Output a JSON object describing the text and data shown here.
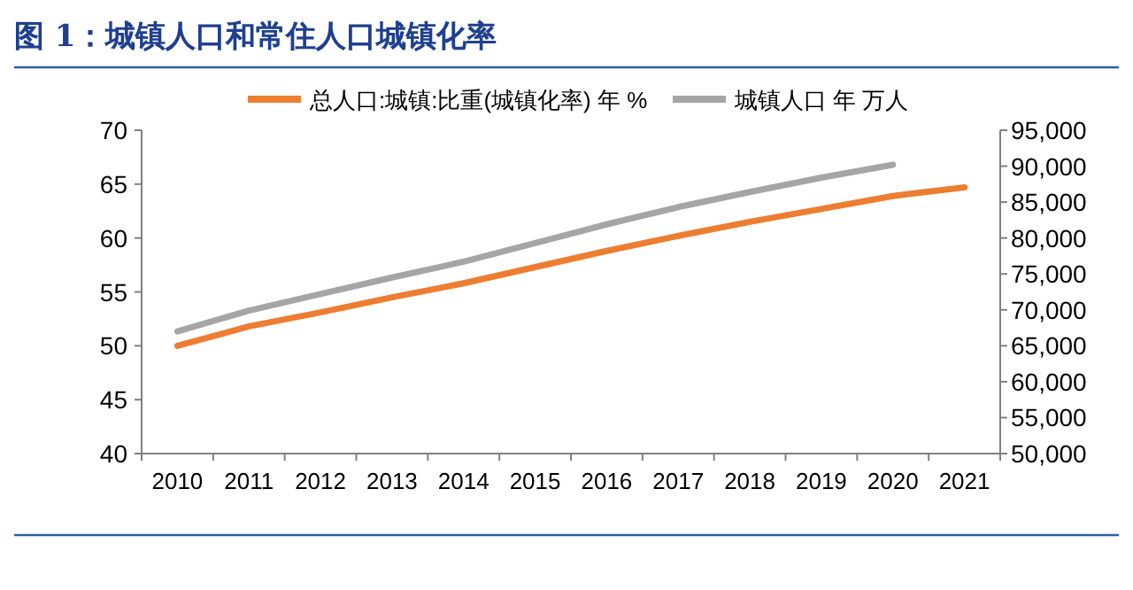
{
  "chart_data": {
    "type": "line",
    "title": "图 1：城镇人口和常住人口城镇化率",
    "categories": [
      "2010",
      "2011",
      "2012",
      "2013",
      "2014",
      "2015",
      "2016",
      "2017",
      "2018",
      "2019",
      "2020",
      "2021"
    ],
    "series": [
      {
        "name": "总人口:城镇:比重(城镇化率) 年 %",
        "color": "#ed7d31",
        "values": [
          50.0,
          51.8,
          53.1,
          54.5,
          55.8,
          57.3,
          58.8,
          60.2,
          61.5,
          62.7,
          63.9,
          64.7
        ]
      },
      {
        "name": "城镇人口 年 万人",
        "color": "#a5a5a5",
        "axis": "y2",
        "values": [
          67000,
          69900,
          72200,
          74500,
          76700,
          79300,
          81900,
          84300,
          86400,
          88400,
          90200,
          null
        ]
      }
    ],
    "ylim": [
      40,
      70
    ],
    "yticks": [
      40,
      45,
      50,
      55,
      60,
      65,
      70
    ],
    "y2lim": [
      50000,
      95000
    ],
    "y2ticks": [
      {
        "value": 50000,
        "label": "50,000"
      },
      {
        "value": 55000,
        "label": "55,000"
      },
      {
        "value": 60000,
        "label": "60,000"
      },
      {
        "value": 65000,
        "label": "65,000"
      },
      {
        "value": 70000,
        "label": "70,000"
      },
      {
        "value": 75000,
        "label": "75,000"
      },
      {
        "value": 80000,
        "label": "80,000"
      },
      {
        "value": 85000,
        "label": "85,000"
      },
      {
        "value": 90000,
        "label": "90,000"
      },
      {
        "value": 95000,
        "label": "95,000"
      }
    ],
    "legend": "top",
    "grid": false,
    "marker": "none",
    "line_style": "solid"
  }
}
